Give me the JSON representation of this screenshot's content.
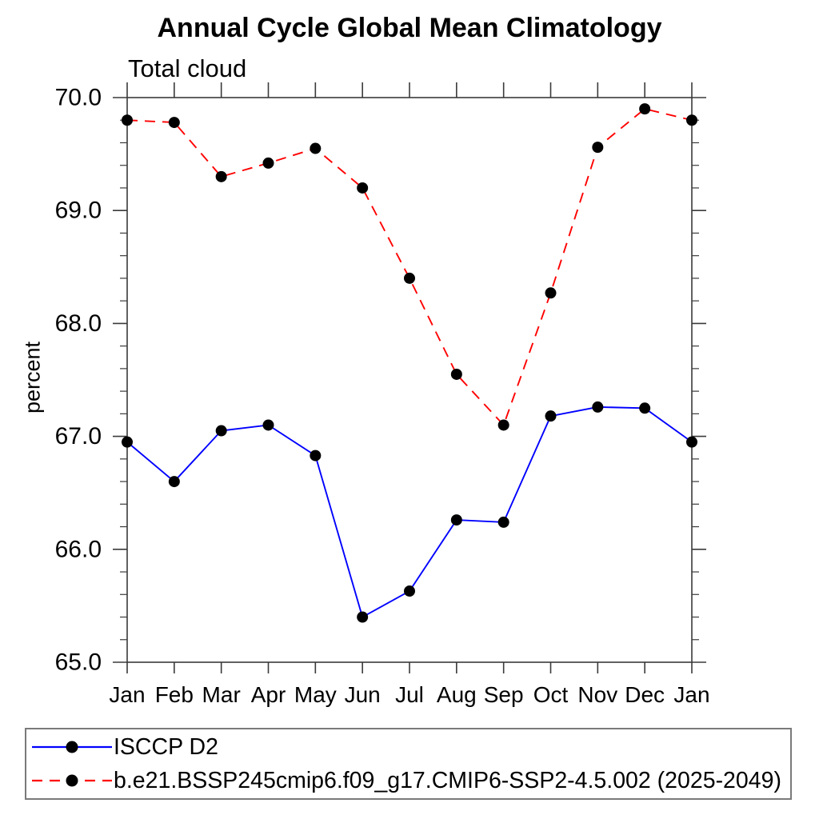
{
  "page": {
    "title": "Annual Cycle Global Mean Climatology",
    "subtitle": "Total cloud"
  },
  "chart_data": {
    "type": "line",
    "title": "Annual Cycle Global Mean Climatology",
    "subtitle": "Total cloud",
    "xlabel": "",
    "ylabel": "percent",
    "categories": [
      "Jan",
      "Feb",
      "Mar",
      "Apr",
      "May",
      "Jun",
      "Jul",
      "Aug",
      "Sep",
      "Oct",
      "Nov",
      "Dec",
      "Jan"
    ],
    "ylim": [
      65.0,
      70.0
    ],
    "ytick_labels": [
      "65.0",
      "66.0",
      "67.0",
      "68.0",
      "69.0",
      "70.0"
    ],
    "ytick_major_step": 1.0,
    "ytick_minor_step": 0.2,
    "grid": false,
    "legend_position": "bottom",
    "marker": {
      "shape": "circle",
      "color": "#000000",
      "radius": 7
    },
    "series": [
      {
        "name": "ISCCP D2",
        "color": "#0000ff",
        "line_style": "solid",
        "values": [
          66.95,
          66.6,
          67.05,
          67.1,
          66.83,
          65.4,
          65.63,
          66.26,
          66.24,
          67.18,
          67.26,
          67.25,
          66.95
        ]
      },
      {
        "name": "b.e21.BSSP245cmip6.f09_g17.CMIP6-SSP2-4.5.002 (2025-2049)",
        "color": "#ff0000",
        "line_style": "dashed",
        "values": [
          69.8,
          69.78,
          69.3,
          69.42,
          69.55,
          69.2,
          68.4,
          67.55,
          67.1,
          68.27,
          69.56,
          69.9,
          69.8
        ]
      }
    ]
  },
  "colors": {
    "background": "#ffffff",
    "axis": "#3a3a3a",
    "text": "#000000",
    "legend_border": "#7a7a7a"
  }
}
